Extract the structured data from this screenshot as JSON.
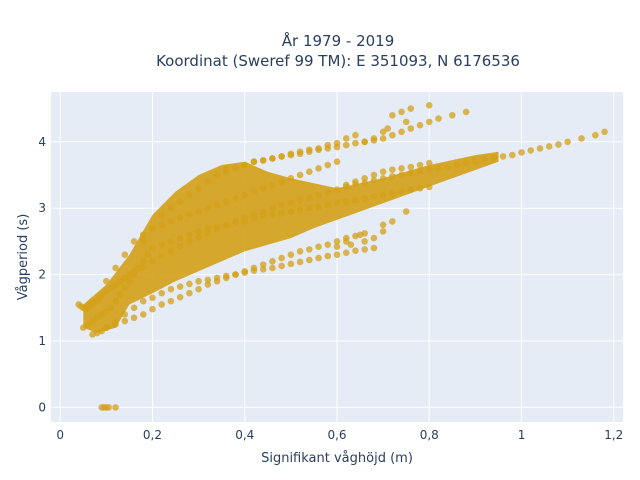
{
  "chart_data": {
    "type": "scatter",
    "title": "År 1979 - 2019",
    "subtitle": "Koordinat (Sweref 99 TM): E 351093, N 6176536",
    "xlabel": "Signifikant våghöjd (m)",
    "ylabel": "Vågperiod (s)",
    "xlim": [
      -0.02,
      1.22
    ],
    "ylim": [
      -0.22,
      4.75
    ],
    "x_ticks": [
      0,
      0.2,
      0.4,
      0.6,
      0.8,
      1.0,
      1.2
    ],
    "x_tick_labels": [
      "0",
      "0,2",
      "0,4",
      "0,6",
      "0,8",
      "1",
      "1,2"
    ],
    "y_ticks": [
      0,
      1,
      2,
      3,
      4
    ],
    "y_tick_labels": [
      "0",
      "1",
      "2",
      "3",
      "4"
    ],
    "grid": true,
    "marker_color": "#D4A017",
    "marker_opacity": 0.75,
    "series": [
      {
        "x": [
          0.09,
          0.095,
          0.1,
          0.105,
          0.12,
          0.04,
          0.045,
          0.05,
          0.055,
          0.06,
          0.065,
          0.07,
          0.075,
          0.08,
          0.085,
          0.09,
          0.1,
          0.11,
          0.12,
          0.13,
          0.14,
          0.15,
          0.16,
          0.18,
          0.2,
          0.22,
          0.24,
          0.26,
          0.28,
          0.3,
          0.32,
          0.34,
          0.36,
          0.38,
          0.4,
          0.42,
          0.44,
          0.46,
          0.48,
          0.5,
          0.52,
          0.54,
          0.56,
          0.58,
          0.6,
          0.62,
          0.64,
          0.66,
          0.68,
          0.7,
          0.72,
          0.74,
          0.76,
          0.78,
          0.8,
          0.82,
          0.84,
          0.86,
          0.88,
          0.9,
          0.92,
          0.94,
          0.96,
          0.98,
          1.0,
          1.02,
          1.04,
          1.06,
          1.08,
          1.1,
          1.13,
          1.16,
          1.18,
          0.1,
          0.12,
          0.14,
          0.16,
          0.18,
          0.2,
          0.22,
          0.24,
          0.26,
          0.28,
          0.3,
          0.32,
          0.34,
          0.36,
          0.38,
          0.4,
          0.42,
          0.44,
          0.46,
          0.48,
          0.5,
          0.52,
          0.54,
          0.56,
          0.58,
          0.6,
          0.62,
          0.64,
          0.66,
          0.7,
          0.18,
          0.2,
          0.22,
          0.24,
          0.26,
          0.28,
          0.3,
          0.32,
          0.34,
          0.36,
          0.38,
          0.4,
          0.42,
          0.44,
          0.46,
          0.48,
          0.5,
          0.52,
          0.54,
          0.56,
          0.58,
          0.6,
          0.62,
          0.64,
          0.66,
          0.68,
          0.7,
          0.72,
          0.74,
          0.76,
          0.78,
          0.8,
          0.82,
          0.85,
          0.88,
          0.05,
          0.06,
          0.07,
          0.08,
          0.09,
          0.1,
          0.11,
          0.12,
          0.13,
          0.14,
          0.15,
          0.16,
          0.17,
          0.18,
          0.19,
          0.2,
          0.22,
          0.24,
          0.26,
          0.28,
          0.3,
          0.32,
          0.34,
          0.36,
          0.38,
          0.4,
          0.42,
          0.44,
          0.46,
          0.48,
          0.5,
          0.52,
          0.54,
          0.56,
          0.58,
          0.6,
          0.62,
          0.64,
          0.66,
          0.68,
          0.7,
          0.72,
          0.74,
          0.76,
          0.78,
          0.8,
          0.07,
          0.08,
          0.09,
          0.1,
          0.12,
          0.14,
          0.16,
          0.18,
          0.2,
          0.22,
          0.24,
          0.26,
          0.28,
          0.3,
          0.32,
          0.34,
          0.36,
          0.38,
          0.4,
          0.42,
          0.44,
          0.46,
          0.48,
          0.5,
          0.52,
          0.54,
          0.56,
          0.58,
          0.6,
          0.62,
          0.64,
          0.66,
          0.68,
          0.1,
          0.12,
          0.14,
          0.16,
          0.18,
          0.2,
          0.22,
          0.24,
          0.26,
          0.28,
          0.3,
          0.32,
          0.34,
          0.36,
          0.38,
          0.4,
          0.42,
          0.44,
          0.46,
          0.48,
          0.5,
          0.52,
          0.54,
          0.56,
          0.58,
          0.6,
          0.62,
          0.64,
          0.66,
          0.68,
          0.7,
          0.72,
          0.74,
          0.76,
          0.78,
          0.8,
          0.7,
          0.71,
          0.75,
          0.8,
          0.72,
          0.74,
          0.76,
          0.68,
          0.66,
          0.64,
          0.62,
          0.6,
          0.58,
          0.56,
          0.54,
          0.52,
          0.5,
          0.48,
          0.46,
          0.44,
          0.42,
          0.4,
          0.38,
          0.36,
          0.66,
          0.68,
          0.7,
          0.72,
          0.75,
          0.63,
          0.6,
          0.65,
          0.62
        ],
        "y": [
          0.0,
          0.0,
          0.0,
          0.0,
          0.0,
          1.55,
          1.52,
          1.5,
          1.48,
          1.5,
          1.55,
          1.6,
          1.58,
          1.62,
          1.65,
          1.7,
          1.75,
          1.8,
          1.85,
          1.9,
          1.95,
          2.0,
          2.05,
          2.12,
          2.2,
          2.28,
          2.35,
          2.42,
          2.5,
          2.56,
          2.62,
          2.68,
          2.74,
          2.8,
          2.85,
          2.9,
          2.95,
          3.0,
          3.05,
          3.08,
          3.12,
          3.16,
          3.2,
          3.24,
          3.28,
          3.32,
          3.36,
          3.38,
          3.42,
          3.45,
          3.48,
          3.5,
          3.53,
          3.55,
          3.58,
          3.6,
          3.62,
          3.65,
          3.68,
          3.7,
          3.73,
          3.76,
          3.78,
          3.8,
          3.84,
          3.87,
          3.9,
          3.93,
          3.96,
          4.0,
          4.05,
          4.1,
          4.15,
          1.2,
          1.25,
          1.3,
          1.35,
          1.4,
          1.48,
          1.55,
          1.6,
          1.66,
          1.72,
          1.78,
          1.85,
          1.9,
          1.95,
          2.0,
          2.05,
          2.1,
          2.15,
          2.2,
          2.25,
          2.3,
          2.35,
          2.38,
          2.42,
          2.45,
          2.5,
          2.55,
          2.58,
          2.62,
          2.75,
          2.5,
          2.7,
          2.9,
          3.0,
          3.1,
          3.2,
          3.3,
          3.4,
          3.5,
          3.55,
          3.6,
          3.65,
          3.7,
          3.72,
          3.75,
          3.78,
          3.8,
          3.82,
          3.85,
          3.88,
          3.9,
          3.92,
          3.95,
          3.98,
          4.0,
          4.02,
          4.05,
          4.1,
          4.15,
          4.2,
          4.25,
          4.3,
          4.35,
          4.4,
          4.45,
          1.2,
          1.25,
          1.3,
          1.35,
          1.4,
          1.45,
          1.5,
          1.6,
          1.7,
          1.8,
          1.9,
          2.0,
          2.1,
          2.2,
          2.3,
          2.4,
          2.45,
          2.5,
          2.55,
          2.6,
          2.65,
          2.7,
          2.72,
          2.75,
          2.78,
          2.8,
          2.85,
          2.88,
          2.9,
          2.92,
          2.95,
          2.98,
          3.0,
          3.02,
          3.05,
          3.08,
          3.1,
          3.12,
          3.15,
          3.18,
          3.2,
          3.22,
          3.25,
          3.28,
          3.3,
          3.32,
          1.1,
          1.12,
          1.15,
          1.2,
          1.3,
          1.4,
          1.5,
          1.6,
          1.65,
          1.72,
          1.78,
          1.82,
          1.86,
          1.9,
          1.92,
          1.95,
          1.98,
          2.0,
          2.03,
          2.06,
          2.08,
          2.1,
          2.13,
          2.16,
          2.19,
          2.22,
          2.25,
          2.28,
          2.3,
          2.33,
          2.36,
          2.38,
          2.4,
          1.9,
          2.1,
          2.3,
          2.5,
          2.6,
          2.7,
          2.75,
          2.8,
          2.85,
          2.9,
          2.95,
          3.0,
          3.05,
          3.1,
          3.15,
          3.2,
          3.25,
          3.3,
          3.35,
          3.4,
          3.45,
          3.5,
          3.55,
          3.6,
          3.65,
          3.7,
          3.35,
          3.4,
          3.45,
          3.5,
          3.55,
          3.58,
          3.6,
          3.62,
          3.65,
          3.68,
          4.15,
          4.2,
          4.3,
          4.55,
          4.4,
          4.45,
          4.5,
          4.05,
          4.0,
          4.1,
          4.05,
          3.98,
          3.95,
          3.9,
          3.88,
          3.85,
          3.82,
          3.78,
          3.75,
          3.72,
          3.7,
          3.65,
          3.62,
          3.6,
          2.5,
          2.55,
          2.65,
          2.8,
          2.95,
          2.45,
          2.42,
          2.6,
          2.5
        ]
      }
    ]
  }
}
